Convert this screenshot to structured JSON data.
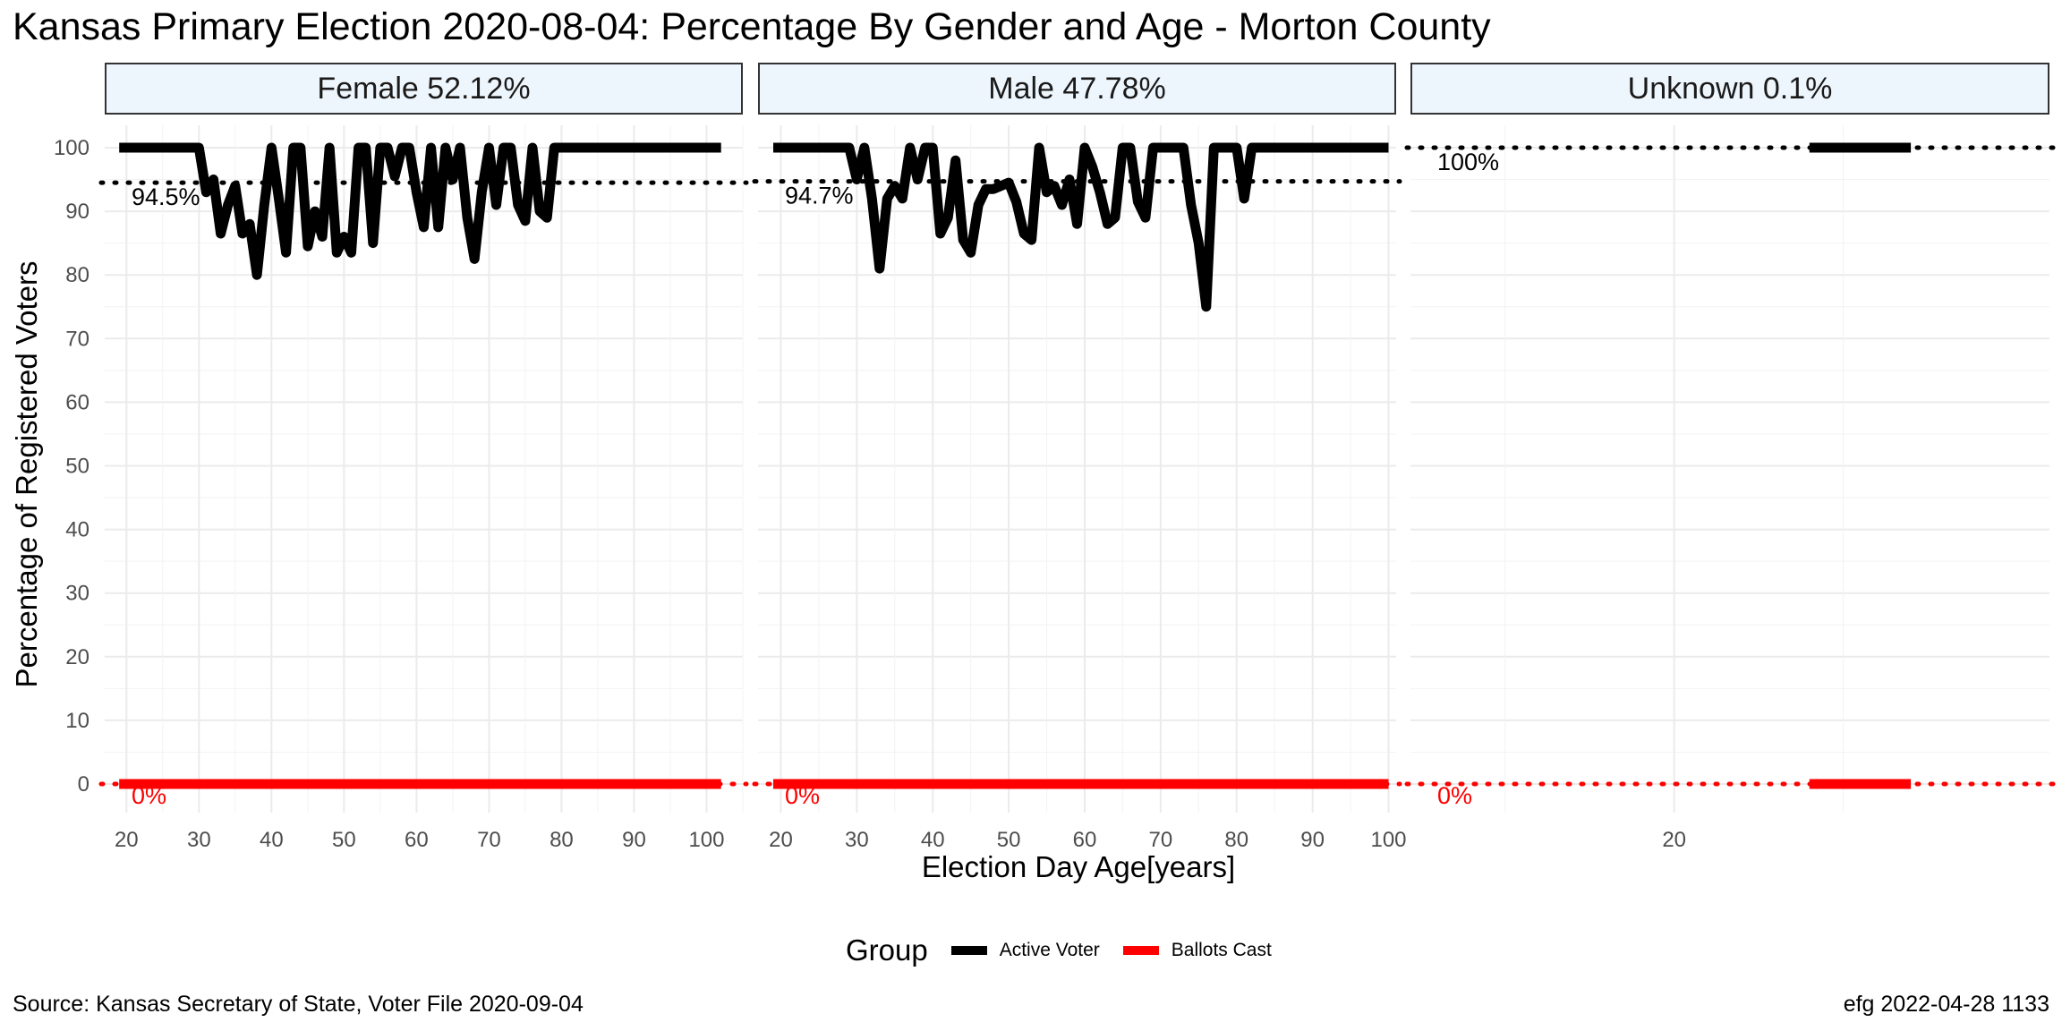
{
  "title": "Kansas Primary Election 2020-08-04:  Percentage By Gender and Age - Morton County",
  "caption_left": "Source:  Kansas Secretary of State, Voter File  2020-09-04",
  "caption_right": "efg 2022-04-28 1133",
  "xlabel": "Election Day Age[years]",
  "ylabel": "Percentage of Registered Voters",
  "legend": {
    "title": "Group",
    "items": [
      {
        "label": "Active Voter",
        "color": "#000000"
      },
      {
        "label": "Ballots Cast",
        "color": "#ff0000"
      }
    ]
  },
  "colors": {
    "active": "#000000",
    "ballots": "#ff0000",
    "strip_bg": "#eef6fd",
    "grid": "#ebebeb"
  },
  "chart_data": {
    "type": "line",
    "ylim": [
      0,
      100
    ],
    "y_ticks": [
      0,
      10,
      20,
      30,
      40,
      50,
      60,
      70,
      80,
      90,
      100
    ],
    "grid": true,
    "legend_position": "bottom",
    "panels": [
      {
        "label": "Female 52.12%",
        "xlim": [
          17,
          105
        ],
        "x_ticks": [
          20,
          30,
          40,
          50,
          60,
          70,
          80,
          90,
          100
        ],
        "series": [
          {
            "name": "Active Voter",
            "color": "#000000",
            "x": [
              19,
              20,
              21,
              22,
              23,
              24,
              25,
              26,
              27,
              28,
              29,
              30,
              31,
              32,
              33,
              34,
              35,
              36,
              37,
              38,
              39,
              40,
              41,
              42,
              43,
              44,
              45,
              46,
              47,
              48,
              49,
              50,
              51,
              52,
              53,
              54,
              55,
              56,
              57,
              58,
              59,
              60,
              61,
              62,
              63,
              64,
              65,
              66,
              67,
              68,
              69,
              70,
              71,
              72,
              73,
              74,
              75,
              76,
              77,
              78,
              79,
              80,
              85,
              90,
              95,
              100,
              102
            ],
            "y": [
              100,
              100,
              100,
              100,
              100,
              100,
              100,
              100,
              100,
              100,
              100,
              100,
              93,
              95,
              86.5,
              91,
              94,
              86.5,
              88,
              80,
              91,
              100,
              92,
              83.5,
              100,
              100,
              84.5,
              90,
              86,
              100,
              83.5,
              86,
              83.5,
              100,
              100,
              85,
              100,
              100,
              95.5,
              100,
              100,
              93,
              87.5,
              100,
              87.5,
              100,
              95,
              100,
              89,
              82.5,
              93,
              100,
              91,
              100,
              100,
              91,
              88.5,
              100,
              90,
              89,
              100,
              100,
              100,
              100,
              100,
              100,
              100
            ]
          },
          {
            "name": "Ballots Cast",
            "color": "#ff0000",
            "x": [
              19,
              102
            ],
            "y": [
              0,
              0
            ]
          }
        ],
        "ref_lines": [
          {
            "value": 94.5,
            "label": "94.5%",
            "color": "#000000"
          },
          {
            "value": 0,
            "label": "0%",
            "color": "#ff0000"
          }
        ]
      },
      {
        "label": "Male 47.78%",
        "xlim": [
          17,
          101
        ],
        "x_ticks": [
          20,
          30,
          40,
          50,
          60,
          70,
          80,
          90,
          100
        ],
        "series": [
          {
            "name": "Active Voter",
            "color": "#000000",
            "x": [
              19,
              20,
              21,
              22,
              23,
              24,
              25,
              26,
              27,
              28,
              29,
              30,
              31,
              32,
              33,
              34,
              35,
              36,
              37,
              38,
              39,
              40,
              41,
              42,
              43,
              44,
              45,
              46,
              47,
              48,
              49,
              50,
              51,
              52,
              53,
              54,
              55,
              56,
              57,
              58,
              59,
              60,
              61,
              62,
              63,
              64,
              65,
              66,
              67,
              68,
              69,
              70,
              71,
              72,
              73,
              74,
              75,
              76,
              77,
              78,
              79,
              80,
              81,
              82,
              83,
              84,
              90,
              95,
              100
            ],
            "y": [
              100,
              100,
              100,
              100,
              100,
              100,
              100,
              100,
              100,
              100,
              100,
              95,
              100,
              92,
              81,
              92,
              94,
              92,
              100,
              95,
              100,
              100,
              86.5,
              89,
              98,
              85.5,
              83.5,
              91,
              93.5,
              93.5,
              94,
              94.5,
              91.5,
              86.5,
              85.5,
              100,
              93,
              94,
              91,
              95,
              88,
              100,
              97,
              93,
              88,
              89,
              100,
              100,
              91.5,
              89,
              100,
              100,
              100,
              100,
              100,
              91,
              85,
              75,
              100,
              100,
              100,
              100,
              92,
              100,
              100,
              100,
              100,
              100,
              100
            ]
          },
          {
            "name": "Ballots Cast",
            "color": "#ff0000",
            "x": [
              19,
              100
            ],
            "y": [
              0,
              0
            ]
          }
        ],
        "ref_lines": [
          {
            "value": 94.7,
            "label": "94.7%",
            "color": "#000000"
          },
          {
            "value": 0,
            "label": "0%",
            "color": "#ff0000"
          }
        ]
      },
      {
        "label": "Unknown 0.1%",
        "xlim": [
          12.2,
          31.1
        ],
        "x_ticks": [
          20
        ],
        "series": [
          {
            "name": "Active Voter",
            "color": "#000000",
            "x": [
              24,
              27
            ],
            "y": [
              100,
              100
            ]
          },
          {
            "name": "Ballots Cast",
            "color": "#ff0000",
            "x": [
              24,
              27
            ],
            "y": [
              0,
              0
            ]
          }
        ],
        "ref_lines": [
          {
            "value": 100,
            "label": "100%",
            "color": "#000000"
          },
          {
            "value": 0,
            "label": "0%",
            "color": "#ff0000"
          }
        ]
      }
    ]
  }
}
